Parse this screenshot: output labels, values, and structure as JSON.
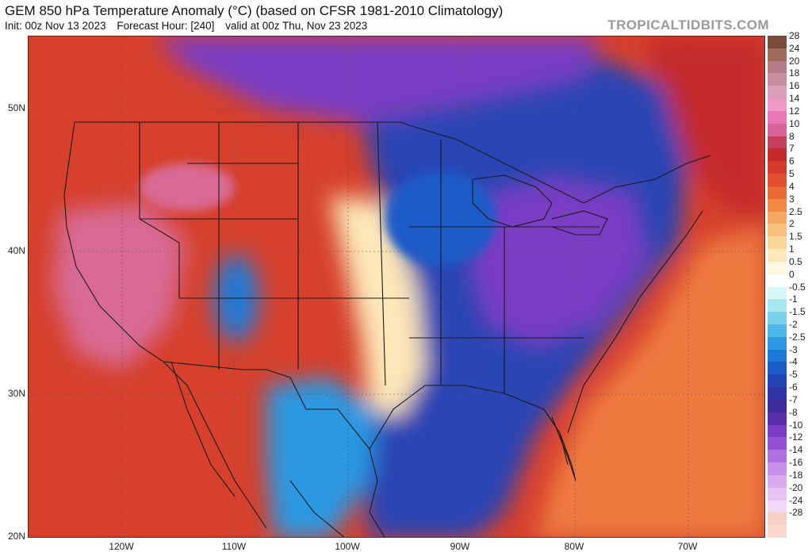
{
  "header": {
    "title": "GEM 850 hPa Temperature Anomaly (°C) (based on CFSR 1981-2010 Climatology)",
    "init": "Init: 00z Nov 13 2023",
    "forecast_hour": "Forecast Hour: [240]",
    "valid": "valid at 00z Thu, Nov 23 2023",
    "brand": "TROPICALTIDBITS.COM"
  },
  "axes": {
    "lat_labels": [
      "50N",
      "40N",
      "30N",
      "20N"
    ],
    "lon_labels": [
      "120W",
      "110W",
      "100W",
      "90W",
      "80W",
      "70W"
    ]
  },
  "legend": {
    "items": [
      {
        "label": "28",
        "color": "#7a4a3a"
      },
      {
        "label": "24",
        "color": "#a06a5a"
      },
      {
        "label": "20",
        "color": "#b47c88"
      },
      {
        "label": "18",
        "color": "#c88ea0"
      },
      {
        "label": "16",
        "color": "#d8a0b8"
      },
      {
        "label": "14",
        "color": "#ee9ac8"
      },
      {
        "label": "12",
        "color": "#e878b8"
      },
      {
        "label": "10",
        "color": "#d8629a"
      },
      {
        "label": "8",
        "color": "#c43e5e"
      },
      {
        "label": "7",
        "color": "#c42a2a"
      },
      {
        "label": "6",
        "color": "#d63a2a"
      },
      {
        "label": "5",
        "color": "#e0502c"
      },
      {
        "label": "4",
        "color": "#ea6a34"
      },
      {
        "label": "3",
        "color": "#f28a44"
      },
      {
        "label": "2.5",
        "color": "#f6a860"
      },
      {
        "label": "2",
        "color": "#f8c07a"
      },
      {
        "label": "1.5",
        "color": "#fad89a"
      },
      {
        "label": "1",
        "color": "#fce8b8"
      },
      {
        "label": "0.5",
        "color": "#fdf6e0"
      },
      {
        "label": "0",
        "color": "#ffffff"
      },
      {
        "label": "-0.5",
        "color": "#d6f6f8"
      },
      {
        "label": "-1",
        "color": "#a6e8f2"
      },
      {
        "label": "-1.5",
        "color": "#78d2ee"
      },
      {
        "label": "-2",
        "color": "#4cb8ea"
      },
      {
        "label": "-2.5",
        "color": "#2c98e2"
      },
      {
        "label": "-3",
        "color": "#1e7ad8"
      },
      {
        "label": "-4",
        "color": "#1a5cc8"
      },
      {
        "label": "-5",
        "color": "#2244b4"
      },
      {
        "label": "-6",
        "color": "#2e34a8"
      },
      {
        "label": "-7",
        "color": "#3c2c9c"
      },
      {
        "label": "-8",
        "color": "#5530a8"
      },
      {
        "label": "-10",
        "color": "#7a3cc4"
      },
      {
        "label": "-12",
        "color": "#9450d4"
      },
      {
        "label": "-14",
        "color": "#b070e0"
      },
      {
        "label": "-16",
        "color": "#c890e8"
      },
      {
        "label": "-18",
        "color": "#d8aaec"
      },
      {
        "label": "-20",
        "color": "#e6c4f2"
      },
      {
        "label": "-24",
        "color": "#f0d8f6"
      },
      {
        "label": "-28",
        "color": "#f8d0c8"
      },
      {
        "label": "",
        "color": "#fcd8cc"
      }
    ]
  },
  "map_colors": {
    "west_warm": "#d6402c",
    "pacific": "#c42a2a",
    "anomaly_pink": "#d86a94",
    "east_cold": "#2b44b4",
    "core_cold": "#7a3cc4",
    "atlantic_warm": "#ee7a40",
    "boundary": "#fde7b8",
    "coast_line": "#1a1a1a"
  }
}
